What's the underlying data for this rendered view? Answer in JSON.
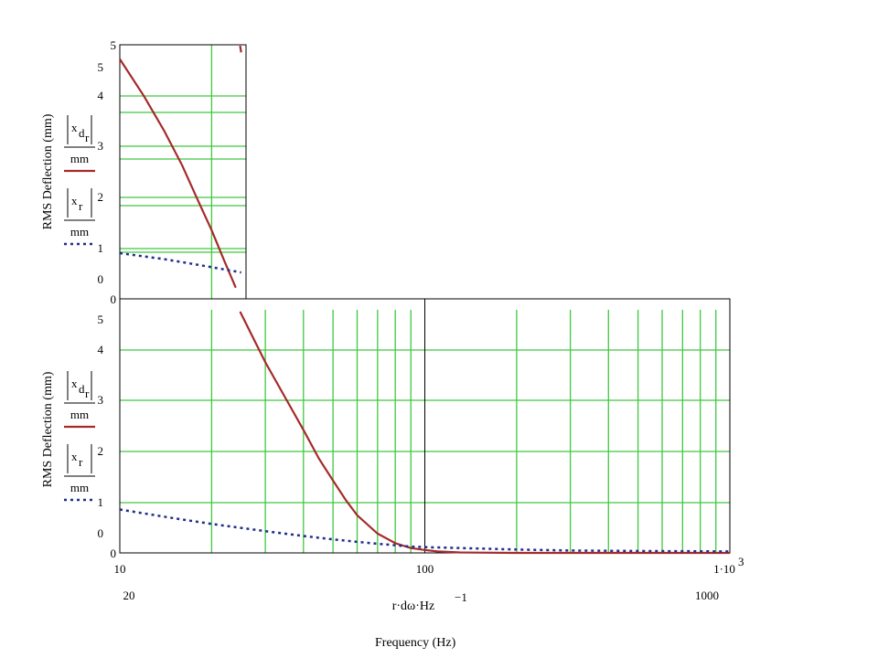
{
  "chart_data": [
    {
      "type": "line",
      "panel": "top",
      "x_scale": "log",
      "xlim": [
        10,
        25
      ],
      "ylim": [
        0,
        5
      ],
      "ylabel": "RMS Deflection (mm)",
      "y_ticks": [
        "5",
        "4",
        "3",
        "2",
        "1",
        "0"
      ],
      "y_tick_values": [
        5,
        4,
        3,
        2,
        1,
        0
      ],
      "y_extra_ticks": [
        "5",
        "0"
      ],
      "grid": true,
      "legend": [
        {
          "expr_top": "x",
          "sub": "d",
          "subsub": "r",
          "denom": "mm",
          "style": "solid",
          "color": "#a52a2a"
        },
        {
          "expr_top": "x",
          "sub": "r",
          "subsub": "",
          "denom": "mm",
          "style": "dotted",
          "color": "#1f2e8c"
        }
      ],
      "series": [
        {
          "color": "#a52a2a",
          "style": "solid",
          "x": [
            10,
            12,
            14,
            16,
            18,
            20,
            22,
            24
          ],
          "y": [
            4.72,
            3.99,
            3.3,
            2.63,
            1.95,
            1.35,
            0.75,
            0.22
          ]
        },
        {
          "color": "#a52a2a",
          "style": "solid",
          "x": [
            24.8,
            25
          ],
          "y": [
            4.98,
            4.85
          ]
        },
        {
          "color": "#1f2e8c",
          "style": "dotted",
          "x": [
            10,
            14,
            18,
            22,
            25
          ],
          "y": [
            0.9,
            0.78,
            0.67,
            0.58,
            0.52
          ]
        }
      ]
    },
    {
      "type": "line",
      "panel": "bottom",
      "x_scale": "log",
      "xlim": [
        10,
        1000
      ],
      "ylim": [
        0,
        5
      ],
      "x_ticks": [
        "10",
        "100",
        "1·10"
      ],
      "x_tick_values": [
        10,
        100,
        1000
      ],
      "x_tick_sup": "3",
      "x_secondary_ticks": [
        "20",
        "1000"
      ],
      "x_secondary_tick_values": [
        20,
        1000
      ],
      "xlabel": "r·dω·Hz",
      "xlabel_sup": "−1",
      "xlabel_caption": "Frequency (Hz)",
      "ylabel": "RMS Deflection (mm)",
      "y_ticks": [
        "5",
        "4",
        "3",
        "2",
        "1",
        "0"
      ],
      "y_tick_values": [
        5,
        4,
        3,
        2,
        1,
        0
      ],
      "y_extra_ticks": [
        "5",
        "0"
      ],
      "grid": true,
      "legend": [
        {
          "expr_top": "x",
          "sub": "d",
          "subsub": "r",
          "denom": "mm",
          "style": "solid",
          "color": "#a52a2a"
        },
        {
          "expr_top": "x",
          "sub": "r",
          "subsub": "",
          "denom": "mm",
          "style": "dotted",
          "color": "#1f2e8c"
        }
      ],
      "series": [
        {
          "color": "#a52a2a",
          "style": "solid",
          "x": [
            24.8,
            30,
            35,
            40,
            45,
            50,
            55,
            60,
            70,
            80,
            90,
            100,
            110,
            130,
            150,
            200,
            300,
            500,
            1000
          ],
          "y": [
            5.0,
            3.95,
            3.2,
            2.55,
            1.95,
            1.5,
            1.1,
            0.78,
            0.4,
            0.2,
            0.1,
            0.06,
            0.03,
            0.01,
            0.005,
            0.0,
            0.0,
            0.0,
            0.0
          ]
        },
        {
          "color": "#1f2e8c",
          "style": "dotted",
          "x": [
            10,
            15,
            20,
            30,
            40,
            50,
            60,
            70,
            80,
            90,
            100,
            150,
            200,
            300,
            500,
            1000
          ],
          "y": [
            0.9,
            0.72,
            0.6,
            0.45,
            0.35,
            0.28,
            0.23,
            0.19,
            0.16,
            0.13,
            0.12,
            0.09,
            0.07,
            0.05,
            0.04,
            0.03
          ]
        }
      ]
    }
  ]
}
